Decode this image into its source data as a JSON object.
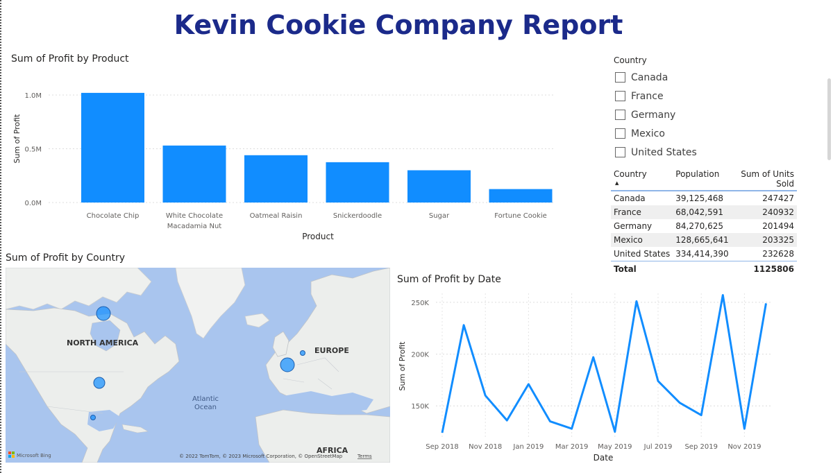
{
  "report": {
    "title": "Kevin Cookie Company Report"
  },
  "bar_visual": {
    "title": "Sum of Profit by Product",
    "ylabel": "Sum of Profit",
    "xlabel": "Product"
  },
  "map_visual": {
    "title": "Sum of Profit by Country",
    "labels": {
      "north_america": "NORTH AMERICA",
      "europe": "EUROPE",
      "africa": "AFRICA",
      "atlantic_1": "Atlantic",
      "atlantic_2": "Ocean"
    },
    "attribution": "© 2022 TomTom, © 2023 Microsoft Corporation, © OpenStreetMap",
    "terms": "Terms",
    "bing": "Microsoft Bing"
  },
  "line_visual": {
    "title": "Sum of Profit by Date",
    "ylabel": "Sum of Profit",
    "xlabel": "Date"
  },
  "slicer": {
    "title": "Country",
    "items": [
      {
        "label": "Canada"
      },
      {
        "label": "France"
      },
      {
        "label": "Germany"
      },
      {
        "label": "Mexico"
      },
      {
        "label": "United States"
      }
    ]
  },
  "table": {
    "headers": [
      "Country",
      "Population",
      "Sum of Units Sold"
    ],
    "rows": [
      [
        "Canada",
        "39,125,468",
        "247427"
      ],
      [
        "France",
        "68,042,591",
        "240932"
      ],
      [
        "Germany",
        "84,270,625",
        "201494"
      ],
      [
        "Mexico",
        "128,665,641",
        "203325"
      ],
      [
        "United States",
        "334,414,390",
        "232628"
      ]
    ],
    "total_label": "Total",
    "total_value": "1125806"
  },
  "colors": {
    "accent": "#118dff",
    "title": "#1b2a8a"
  },
  "chart_data": [
    {
      "type": "bar",
      "title": "Sum of Profit by Product",
      "categories": [
        "Chocolate Chip",
        "White Chocolate Macadamia Nut",
        "Oatmeal Raisin",
        "Snickerdoodle",
        "Sugar",
        "Fortune Cookie"
      ],
      "category_lines": [
        [
          "Chocolate Chip"
        ],
        [
          "White Chocolate",
          "Macadamia Nut"
        ],
        [
          "Oatmeal Raisin"
        ],
        [
          "Snickerdoodle"
        ],
        [
          "Sugar"
        ],
        [
          "Fortune Cookie"
        ]
      ],
      "values": [
        1020000,
        530000,
        440000,
        375000,
        300000,
        125000
      ],
      "xlabel": "Product",
      "ylabel": "Sum of Profit",
      "ylim": [
        0,
        1000000
      ],
      "yticks": [
        0,
        500000,
        1000000
      ],
      "yticklabels": [
        "0.0M",
        "0.5M",
        "1.0M"
      ],
      "grid": true
    },
    {
      "type": "line",
      "title": "Sum of Profit by Date",
      "x": [
        "2018-09",
        "2018-10",
        "2018-11",
        "2018-12",
        "2019-01",
        "2019-02",
        "2019-03",
        "2019-04",
        "2019-05",
        "2019-06",
        "2019-07",
        "2019-08",
        "2019-09",
        "2019-10",
        "2019-11",
        "2019-12"
      ],
      "xticklabels": [
        "Sep 2018",
        "Nov 2018",
        "Jan 2019",
        "Mar 2019",
        "May 2019",
        "Jul 2019",
        "Sep 2019",
        "Nov 2019"
      ],
      "values": [
        124000,
        228000,
        160000,
        136000,
        171000,
        135000,
        128000,
        197000,
        125000,
        251000,
        174000,
        153000,
        141000,
        257000,
        128000,
        249000
      ],
      "xlabel": "Date",
      "ylabel": "Sum of Profit",
      "ylim": [
        120000,
        262000
      ],
      "yticks": [
        150000,
        200000,
        250000
      ],
      "yticklabels": [
        "150K",
        "200K",
        "250K"
      ],
      "grid": true
    },
    {
      "type": "map",
      "title": "Sum of Profit by Country",
      "points": [
        {
          "country": "Canada",
          "size": "large"
        },
        {
          "country": "United States",
          "size": "medium"
        },
        {
          "country": "Mexico",
          "size": "small"
        },
        {
          "country": "France",
          "size": "large"
        },
        {
          "country": "Germany",
          "size": "small"
        }
      ]
    }
  ]
}
